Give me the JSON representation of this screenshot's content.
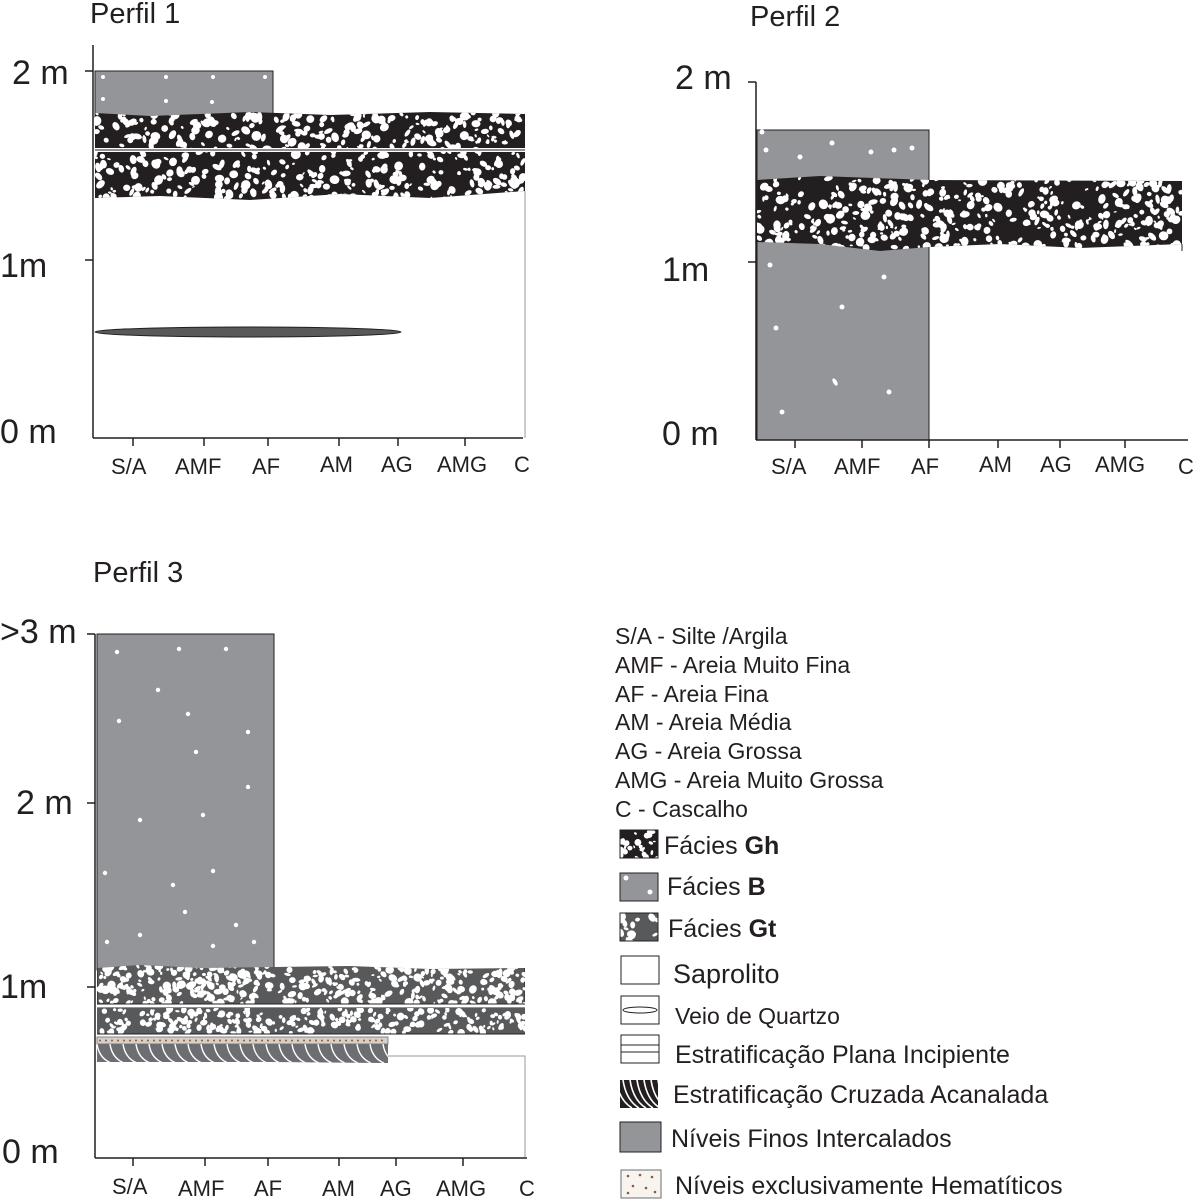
{
  "profiles": [
    {
      "title": "Perfil 1",
      "y_labels": [
        "2 m",
        "1m",
        "0 m"
      ],
      "x_labels": [
        "S/A",
        "AMF",
        "AF",
        "AM",
        "AG",
        "AMG",
        "C"
      ]
    },
    {
      "title": "Perfil 2",
      "y_labels": [
        "2 m",
        "1m",
        "0 m"
      ],
      "x_labels": [
        "S/A",
        "AMF",
        "AF",
        "AM",
        "AG",
        "AMG",
        "C"
      ]
    },
    {
      "title": "Perfil 3",
      "y_labels": [
        ">3 m",
        "2 m",
        "1m",
        "0 m"
      ],
      "x_labels": [
        "S/A",
        "AMF",
        "AF",
        "AM",
        "AG",
        "AMG",
        "C"
      ]
    }
  ],
  "legend": {
    "abbreviations": [
      "S/A - Silte /Argila",
      "AMF - Areia Muito Fina",
      "AF - Areia Fina",
      "AM - Areia Média",
      "AG - Areia Grossa",
      "AMG - Areia Muito Grossa",
      "C - Cascalho"
    ],
    "facies_prefix": "Fácies",
    "gh": "Gh",
    "b": "B",
    "gt": "Gt",
    "saprolito": "Saprolito",
    "veio": "Veio de Quartzo",
    "plana": "Estratificação Plana Incipiente",
    "cruzada": "Estratificação Cruzada Acanalada",
    "finos": "Níveis Finos Intercalados",
    "hematiticos": "Níveis exclusivamente Hematíticos"
  },
  "colors": {
    "gray_fill": "#939598",
    "black_fill": "#231f20",
    "gt_fill": "#58595b",
    "line": "#231f20"
  }
}
